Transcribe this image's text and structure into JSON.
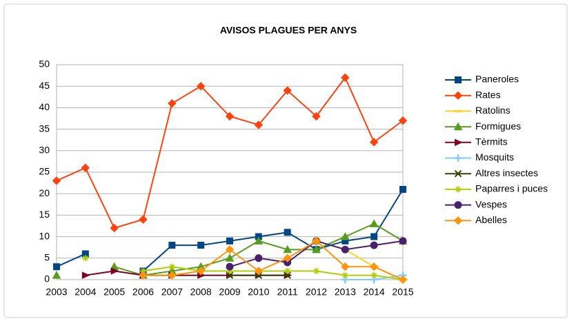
{
  "chart_data": {
    "type": "line",
    "title": "AVISOS PLAGUES PER ANYS",
    "categories": [
      "2003",
      "2004",
      "2005",
      "2006",
      "2007",
      "2008",
      "2009",
      "2010",
      "2011",
      "2012",
      "2013",
      "2014",
      "2015"
    ],
    "ylim": [
      0,
      50
    ],
    "yticks": [
      0,
      5,
      10,
      15,
      20,
      25,
      30,
      35,
      40,
      45,
      50
    ],
    "grid": true,
    "legend": "right",
    "series": [
      {
        "name": "Paneroles",
        "color": "#004586",
        "marker": "square",
        "values": [
          3,
          6,
          null,
          2,
          8,
          8,
          9,
          10,
          11,
          7,
          9,
          10,
          21
        ]
      },
      {
        "name": "Rates",
        "color": "#ff420e",
        "marker": "diamond",
        "values": [
          23,
          26,
          12,
          14,
          41,
          45,
          38,
          36,
          44,
          38,
          47,
          32,
          37
        ]
      },
      {
        "name": "Ratolins",
        "color": "#ffd320",
        "marker": "dash",
        "values": [
          null,
          null,
          null,
          null,
          null,
          null,
          null,
          null,
          null,
          9,
          7,
          3,
          0
        ]
      },
      {
        "name": "Formigues",
        "color": "#579d1c",
        "marker": "triangle",
        "values": [
          1,
          null,
          3,
          1,
          2,
          3,
          5,
          9,
          7,
          7,
          10,
          13,
          9
        ]
      },
      {
        "name": "Tèrmits",
        "color": "#7e0021",
        "marker": "triangle-right",
        "values": [
          null,
          1,
          2,
          1,
          1,
          1,
          1,
          1,
          1,
          null,
          null,
          null,
          null
        ]
      },
      {
        "name": "Mosquits",
        "color": "#83caff",
        "marker": "plus",
        "values": [
          null,
          null,
          null,
          null,
          null,
          null,
          null,
          null,
          null,
          null,
          0,
          0,
          1
        ]
      },
      {
        "name": "Altres insectes",
        "color": "#314004",
        "marker": "cross",
        "values": [
          null,
          null,
          null,
          null,
          null,
          null,
          1,
          1,
          1,
          null,
          null,
          null,
          null
        ]
      },
      {
        "name": "Paparres i puces",
        "color": "#aecf00",
        "marker": "asterisk",
        "values": [
          null,
          5,
          null,
          2,
          3,
          2,
          2,
          2,
          2,
          2,
          1,
          1,
          0
        ]
      },
      {
        "name": "Vespes",
        "color": "#4b1f6f",
        "marker": "circle",
        "values": [
          null,
          null,
          null,
          null,
          null,
          null,
          3,
          5,
          4,
          9,
          7,
          8,
          9
        ]
      },
      {
        "name": "Abelles",
        "color": "#ff950e",
        "marker": "diamond",
        "values": [
          null,
          null,
          null,
          1,
          1,
          2,
          7,
          2,
          5,
          9,
          3,
          3,
          0
        ]
      }
    ]
  }
}
